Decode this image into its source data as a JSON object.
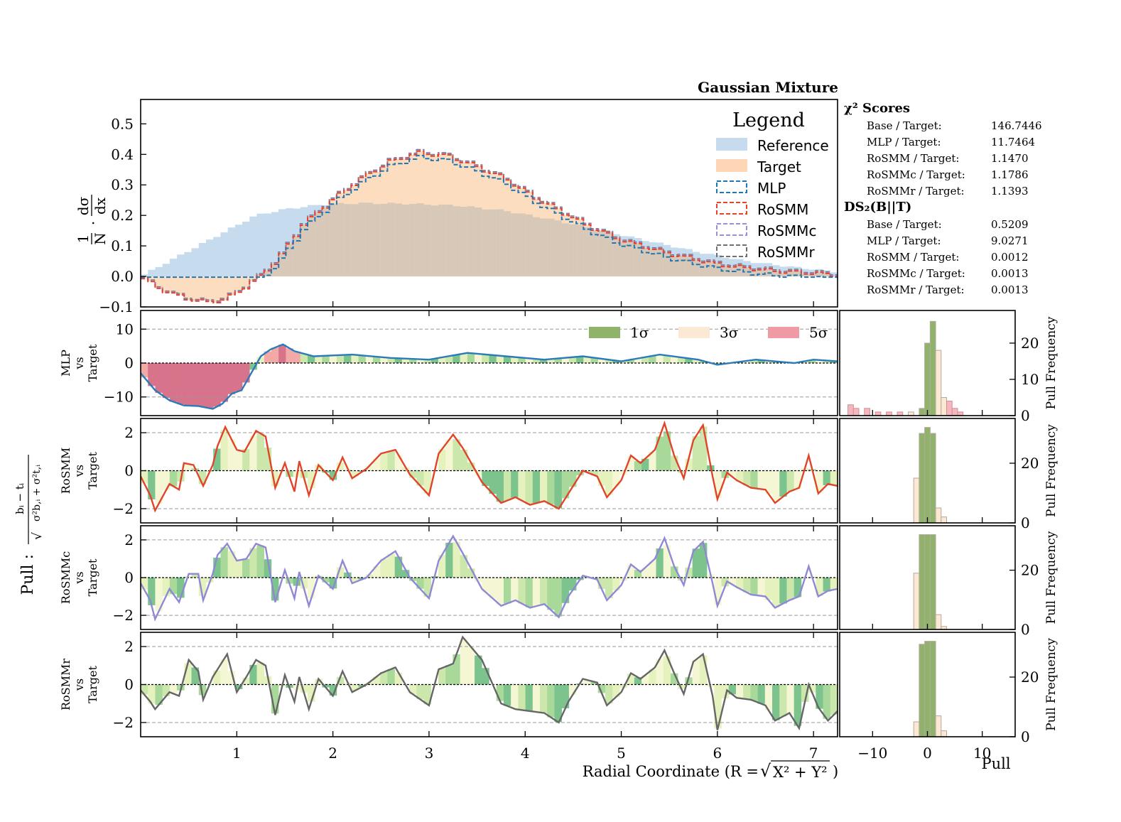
{
  "figure": {
    "title": "Gaussian Mixture",
    "x_label_prefix": "Radial Coordinate (R = ",
    "x_label_sqrt": "√",
    "x_label_rad": "X² + Y²",
    "x_label_suffix": ")",
    "y_main_one": "1",
    "y_main_N": "N",
    "y_main_dot": "·",
    "y_main_dsigma": "dσ",
    "y_main_dx": "dx",
    "pull_label_prefix": "Pull :",
    "pull_num": "bᵢ − tᵢ",
    "pull_den_sqrt": "√",
    "pull_den": "σ²b,ᵢ + σ²t,ᵢ",
    "hist_x_label": "Pull",
    "hist_y_label": "Pull Frequency"
  },
  "legend": {
    "title": "Legend",
    "items": [
      {
        "label": "Reference",
        "color": "#c6dbee",
        "style": "fill"
      },
      {
        "label": "Target",
        "color": "#fdd7b5",
        "style": "fill"
      },
      {
        "label": "MLP",
        "color": "#1f77b4",
        "style": "dash"
      },
      {
        "label": "RoSMM",
        "color": "#e8432a",
        "style": "dash"
      },
      {
        "label": "RoSMMc",
        "color": "#9b8fd8",
        "style": "dash"
      },
      {
        "label": "RoSMMr",
        "color": "#707070",
        "style": "dash"
      }
    ]
  },
  "sigma_legend": [
    {
      "label": "1σ",
      "color": "#8fb36a"
    },
    {
      "label": "3σ",
      "color": "#fbe9d3"
    },
    {
      "label": "5σ",
      "color": "#ef9aa4"
    }
  ],
  "scores": {
    "chi2_title": "χ² Scores",
    "chi2": [
      {
        "label": "Base / Target:",
        "value": "146.7446"
      },
      {
        "label": "MLP / Target:",
        "value": "11.7464"
      },
      {
        "label": "RoSMM / Target:",
        "value": "1.1470"
      },
      {
        "label": "RoSMMc / Target:",
        "value": "1.1786"
      },
      {
        "label": "RoSMMr / Target:",
        "value": "1.1393"
      }
    ],
    "ds_title": "DS₂(B||T)",
    "ds": [
      {
        "label": "Base / Target:",
        "value": "0.5209"
      },
      {
        "label": "MLP / Target:",
        "value": "9.0271"
      },
      {
        "label": "RoSMM / Target:",
        "value": "0.0012"
      },
      {
        "label": "RoSMMc / Target:",
        "value": "0.0013"
      },
      {
        "label": "RoSMMr / Target:",
        "value": "0.0013"
      }
    ]
  },
  "pull_panels": [
    {
      "name": "mlp",
      "line1": "MLP",
      "line2": "vs",
      "line3": "Target",
      "color": "#2b7bba"
    },
    {
      "name": "rosmm",
      "line1": "RoSMM",
      "line2": "vs",
      "line3": "Target",
      "color": "#e0452a"
    },
    {
      "name": "rosmmc",
      "line1": "RoSMMc",
      "line2": "vs",
      "line3": "Target",
      "color": "#8f88d4"
    },
    {
      "name": "rosmmr",
      "line1": "RoSMMr",
      "line2": "vs",
      "line3": "Target",
      "color": "#666666"
    }
  ],
  "chart_data": {
    "type": "bar",
    "title": "Gaussian Mixture",
    "xlabel": "Radial Coordinate (R = √(X² + Y²))",
    "xlim": [
      0,
      7.25
    ],
    "x_ticks": [
      1,
      2,
      3,
      4,
      5,
      6,
      7
    ],
    "main": {
      "ylim": [
        -0.1,
        0.58
      ],
      "y_ticks": [
        -0.1,
        0.0,
        0.1,
        0.2,
        0.3,
        0.4,
        0.5
      ],
      "bins": 96,
      "reference_peak": 0.24,
      "target_peak": 0.4,
      "curves": {
        "Reference": [
          [
            0,
            0
          ],
          [
            0.3,
            0.05
          ],
          [
            0.6,
            0.1
          ],
          [
            0.9,
            0.15
          ],
          [
            1.2,
            0.2
          ],
          [
            1.5,
            0.22
          ],
          [
            1.9,
            0.236
          ],
          [
            2.3,
            0.24
          ],
          [
            2.8,
            0.238
          ],
          [
            3.3,
            0.232
          ],
          [
            3.8,
            0.215
          ],
          [
            4.3,
            0.185
          ],
          [
            4.8,
            0.15
          ],
          [
            5.3,
            0.115
          ],
          [
            5.8,
            0.08
          ],
          [
            6.3,
            0.05
          ],
          [
            6.8,
            0.03
          ],
          [
            7.25,
            0.015
          ]
        ],
        "Target": [
          [
            0,
            0
          ],
          [
            0.2,
            -0.04
          ],
          [
            0.45,
            -0.07
          ],
          [
            0.7,
            -0.085
          ],
          [
            0.9,
            -0.075
          ],
          [
            1.05,
            -0.045
          ],
          [
            1.25,
            0.0
          ],
          [
            1.45,
            0.06
          ],
          [
            1.7,
            0.17
          ],
          [
            2.0,
            0.25
          ],
          [
            2.3,
            0.32
          ],
          [
            2.6,
            0.375
          ],
          [
            2.9,
            0.405
          ],
          [
            3.2,
            0.395
          ],
          [
            3.5,
            0.36
          ],
          [
            3.8,
            0.32
          ],
          [
            4.1,
            0.26
          ],
          [
            4.4,
            0.21
          ],
          [
            4.7,
            0.16
          ],
          [
            5.0,
            0.12
          ],
          [
            5.5,
            0.075
          ],
          [
            6.0,
            0.04
          ],
          [
            6.5,
            0.02
          ],
          [
            7.25,
            0.005
          ]
        ]
      }
    },
    "pulls": {
      "ylim_mlp": [
        -15.5,
        15.5
      ],
      "yticks_mlp": [
        -10,
        0,
        10
      ],
      "ylim": [
        -2.75,
        2.75
      ],
      "yticks": [
        -2,
        0,
        2
      ],
      "mlp": [
        [
          0,
          -3
        ],
        [
          0.15,
          -8
        ],
        [
          0.3,
          -11
        ],
        [
          0.45,
          -12.5
        ],
        [
          0.6,
          -12.7
        ],
        [
          0.75,
          -13.5
        ],
        [
          0.85,
          -12
        ],
        [
          0.95,
          -9
        ],
        [
          1.05,
          -8
        ],
        [
          1.15,
          -3
        ],
        [
          1.25,
          2
        ],
        [
          1.35,
          4
        ],
        [
          1.48,
          5.5
        ],
        [
          1.6,
          3.5
        ],
        [
          1.8,
          2
        ],
        [
          2.2,
          2.5
        ],
        [
          2.6,
          1.5
        ],
        [
          3.0,
          1
        ],
        [
          3.4,
          3
        ],
        [
          3.8,
          2
        ],
        [
          4.2,
          1
        ],
        [
          4.6,
          2
        ],
        [
          5.0,
          0.5
        ],
        [
          5.4,
          2.5
        ],
        [
          5.8,
          1
        ],
        [
          6.0,
          -0.5
        ],
        [
          6.4,
          1
        ],
        [
          6.8,
          0
        ],
        [
          7.0,
          1
        ],
        [
          7.25,
          0.5
        ]
      ],
      "rosmm": [
        [
          0,
          -0.3
        ],
        [
          0.1,
          -1.3
        ],
        [
          0.15,
          -2.1
        ],
        [
          0.3,
          -0.7
        ],
        [
          0.4,
          -1.0
        ],
        [
          0.45,
          0.4
        ],
        [
          0.55,
          0.3
        ],
        [
          0.65,
          -0.8
        ],
        [
          0.75,
          0.3
        ],
        [
          0.8,
          1.3
        ],
        [
          0.88,
          2.3
        ],
        [
          1.0,
          1.1
        ],
        [
          1.08,
          1.0
        ],
        [
          1.2,
          2.1
        ],
        [
          1.3,
          1.8
        ],
        [
          1.4,
          -0.9
        ],
        [
          1.5,
          0.4
        ],
        [
          1.6,
          -1.1
        ],
        [
          1.65,
          0.5
        ],
        [
          1.75,
          -1.3
        ],
        [
          1.85,
          0.3
        ],
        [
          2.0,
          -0.5
        ],
        [
          2.1,
          0.7
        ],
        [
          2.2,
          -0.4
        ],
        [
          2.35,
          0.1
        ],
        [
          2.5,
          0.9
        ],
        [
          2.65,
          1.1
        ],
        [
          2.8,
          -0.2
        ],
        [
          3.0,
          -1.3
        ],
        [
          3.1,
          0.9
        ],
        [
          3.25,
          1.9
        ],
        [
          3.35,
          1.2
        ],
        [
          3.55,
          -0.6
        ],
        [
          3.75,
          -1.7
        ],
        [
          3.9,
          -1.4
        ],
        [
          4.05,
          -1.8
        ],
        [
          4.2,
          -1.6
        ],
        [
          4.35,
          -2.0
        ],
        [
          4.45,
          -1.2
        ],
        [
          4.6,
          0.0
        ],
        [
          4.75,
          -0.3
        ],
        [
          4.85,
          -1.4
        ],
        [
          5.0,
          -0.5
        ],
        [
          5.1,
          0.8
        ],
        [
          5.2,
          0.4
        ],
        [
          5.35,
          1.1
        ],
        [
          5.45,
          2.5
        ],
        [
          5.55,
          0.8
        ],
        [
          5.65,
          -0.4
        ],
        [
          5.75,
          1.6
        ],
        [
          5.85,
          2.4
        ],
        [
          5.95,
          -0.3
        ],
        [
          6.0,
          -1.5
        ],
        [
          6.1,
          -0.1
        ],
        [
          6.2,
          -0.5
        ],
        [
          6.35,
          -0.9
        ],
        [
          6.5,
          -1.0
        ],
        [
          6.6,
          -1.7
        ],
        [
          6.75,
          -1.1
        ],
        [
          6.85,
          -0.9
        ],
        [
          6.95,
          0.8
        ],
        [
          7.05,
          -1.2
        ],
        [
          7.15,
          -0.7
        ],
        [
          7.25,
          -0.8
        ]
      ],
      "rosmmc": [
        [
          0,
          -0.3
        ],
        [
          0.1,
          -1.2
        ],
        [
          0.15,
          -2.2
        ],
        [
          0.3,
          -0.6
        ],
        [
          0.4,
          -1.3
        ],
        [
          0.5,
          0.2
        ],
        [
          0.6,
          0.2
        ],
        [
          0.65,
          -1.2
        ],
        [
          0.75,
          0.2
        ],
        [
          0.8,
          1.2
        ],
        [
          0.9,
          1.8
        ],
        [
          1.0,
          0.9
        ],
        [
          1.1,
          1.0
        ],
        [
          1.2,
          1.8
        ],
        [
          1.3,
          1.6
        ],
        [
          1.4,
          -1.3
        ],
        [
          1.5,
          0.4
        ],
        [
          1.6,
          -1.1
        ],
        [
          1.65,
          0.3
        ],
        [
          1.75,
          -1.5
        ],
        [
          1.85,
          0.1
        ],
        [
          2.0,
          -0.6
        ],
        [
          2.1,
          0.9
        ],
        [
          2.2,
          -0.3
        ],
        [
          2.35,
          0.0
        ],
        [
          2.5,
          0.9
        ],
        [
          2.65,
          1.4
        ],
        [
          2.8,
          -0.0
        ],
        [
          3.0,
          -1.1
        ],
        [
          3.1,
          0.9
        ],
        [
          3.25,
          2.2
        ],
        [
          3.35,
          1.3
        ],
        [
          3.55,
          -0.6
        ],
        [
          3.75,
          -1.5
        ],
        [
          3.9,
          -1.2
        ],
        [
          4.05,
          -1.6
        ],
        [
          4.2,
          -1.4
        ],
        [
          4.35,
          -2.1
        ],
        [
          4.45,
          -1.0
        ],
        [
          4.6,
          0.1
        ],
        [
          4.75,
          -0.1
        ],
        [
          4.85,
          -1.2
        ],
        [
          5.0,
          -0.4
        ],
        [
          5.1,
          0.7
        ],
        [
          5.2,
          0.3
        ],
        [
          5.35,
          1.0
        ],
        [
          5.45,
          2.1
        ],
        [
          5.55,
          0.6
        ],
        [
          5.65,
          -0.4
        ],
        [
          5.75,
          1.4
        ],
        [
          5.85,
          1.9
        ],
        [
          5.95,
          -0.3
        ],
        [
          6.0,
          -1.5
        ],
        [
          6.1,
          -0.2
        ],
        [
          6.2,
          -0.5
        ],
        [
          6.35,
          -0.9
        ],
        [
          6.5,
          -1.0
        ],
        [
          6.6,
          -1.6
        ],
        [
          6.75,
          -1.2
        ],
        [
          6.85,
          -1.0
        ],
        [
          6.95,
          0.6
        ],
        [
          7.05,
          -1.0
        ],
        [
          7.15,
          -0.7
        ],
        [
          7.25,
          -0.6
        ]
      ],
      "rosmmr": [
        [
          0,
          -0.3
        ],
        [
          0.1,
          -0.9
        ],
        [
          0.15,
          -1.3
        ],
        [
          0.3,
          -0.4
        ],
        [
          0.4,
          -0.6
        ],
        [
          0.5,
          1.3
        ],
        [
          0.6,
          0.7
        ],
        [
          0.65,
          -0.8
        ],
        [
          0.75,
          0.4
        ],
        [
          0.85,
          1.2
        ],
        [
          0.9,
          1.6
        ],
        [
          1.0,
          -0.4
        ],
        [
          1.1,
          0.4
        ],
        [
          1.2,
          1.3
        ],
        [
          1.3,
          1.0
        ],
        [
          1.4,
          -1.6
        ],
        [
          1.5,
          0.5
        ],
        [
          1.6,
          -0.9
        ],
        [
          1.65,
          0.4
        ],
        [
          1.75,
          -1.3
        ],
        [
          1.85,
          0.3
        ],
        [
          2.0,
          -0.6
        ],
        [
          2.1,
          0.7
        ],
        [
          2.2,
          -0.4
        ],
        [
          2.35,
          0.0
        ],
        [
          2.5,
          0.6
        ],
        [
          2.65,
          0.9
        ],
        [
          2.8,
          -0.4
        ],
        [
          3.0,
          -1.1
        ],
        [
          3.1,
          0.8
        ],
        [
          3.25,
          1.1
        ],
        [
          3.35,
          2.5
        ],
        [
          3.55,
          1.3
        ],
        [
          3.75,
          -1.0
        ],
        [
          3.9,
          -1.3
        ],
        [
          4.05,
          -1.4
        ],
        [
          4.2,
          -1.5
        ],
        [
          4.35,
          -2.0
        ],
        [
          4.45,
          -0.9
        ],
        [
          4.6,
          0.3
        ],
        [
          4.75,
          0.1
        ],
        [
          4.85,
          -1.1
        ],
        [
          5.0,
          -0.4
        ],
        [
          5.1,
          0.6
        ],
        [
          5.2,
          0.3
        ],
        [
          5.35,
          0.9
        ],
        [
          5.45,
          1.8
        ],
        [
          5.55,
          0.6
        ],
        [
          5.65,
          -0.5
        ],
        [
          5.75,
          1.2
        ],
        [
          5.85,
          1.6
        ],
        [
          5.95,
          -0.6
        ],
        [
          6.0,
          -2.4
        ],
        [
          6.1,
          -0.3
        ],
        [
          6.2,
          -0.7
        ],
        [
          6.35,
          -0.8
        ],
        [
          6.5,
          -1.1
        ],
        [
          6.6,
          -1.9
        ],
        [
          6.75,
          -1.5
        ],
        [
          6.85,
          -2.3
        ],
        [
          6.95,
          0.0
        ],
        [
          7.05,
          -1.2
        ],
        [
          7.15,
          -1.9
        ],
        [
          7.25,
          -1.4
        ]
      ]
    },
    "pull_histograms": {
      "xlim": [
        -16,
        16
      ],
      "x_ticks": [
        -10,
        0,
        10
      ],
      "mlp": {
        "ylim": [
          0,
          29
        ],
        "y_ticks": [
          0,
          10,
          20
        ]
      },
      "others": {
        "ylim": [
          0,
          35
        ],
        "y_ticks": [
          0,
          20
        ]
      },
      "mlp_counts": [
        {
          "x": -14,
          "v": 3
        },
        {
          "x": -13,
          "v": 2
        },
        {
          "x": -11,
          "v": 2
        },
        {
          "x": -9,
          "v": 1
        },
        {
          "x": -7,
          "v": 1
        },
        {
          "x": -5,
          "v": 1
        },
        {
          "x": -3,
          "v": 1
        },
        {
          "x": -1,
          "v": 2
        },
        {
          "x": 0,
          "v": 20
        },
        {
          "x": 1,
          "v": 26
        },
        {
          "x": 2,
          "v": 18
        },
        {
          "x": 3,
          "v": 5
        },
        {
          "x": 4,
          "v": 4
        },
        {
          "x": 5,
          "v": 2
        },
        {
          "x": 6,
          "v": 1
        }
      ],
      "rosmm_counts": [
        {
          "x": -2,
          "v": 15
        },
        {
          "x": -1,
          "v": 30
        },
        {
          "x": 0,
          "v": 32
        },
        {
          "x": 1,
          "v": 30
        },
        {
          "x": 2,
          "v": 5
        },
        {
          "x": 3,
          "v": 2
        }
      ],
      "rosmmc_counts": [
        {
          "x": -2,
          "v": 19
        },
        {
          "x": -1,
          "v": 32
        },
        {
          "x": 0,
          "v": 32
        },
        {
          "x": 1,
          "v": 32
        },
        {
          "x": 2,
          "v": 5
        },
        {
          "x": 3,
          "v": 1
        }
      ],
      "rosmmr_counts": [
        {
          "x": -2,
          "v": 5
        },
        {
          "x": -1,
          "v": 31
        },
        {
          "x": 0,
          "v": 32
        },
        {
          "x": 1,
          "v": 32
        },
        {
          "x": 2,
          "v": 7
        },
        {
          "x": 3,
          "v": 2
        }
      ]
    }
  }
}
